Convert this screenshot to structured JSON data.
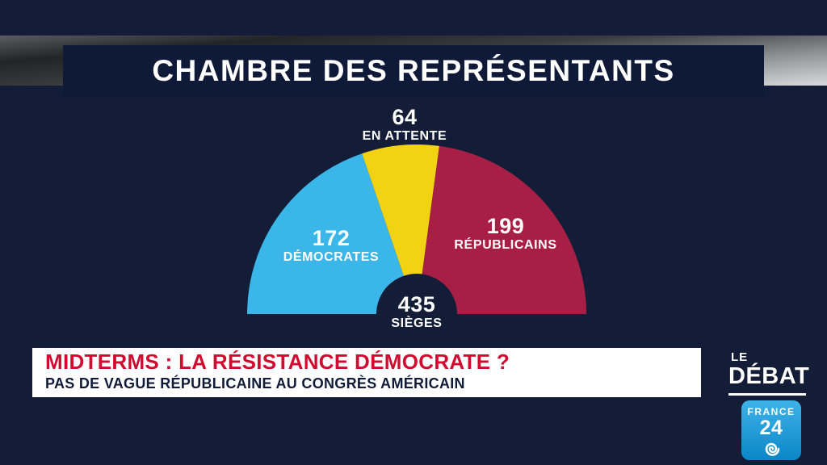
{
  "header": {
    "title": "CHAMBRE DES REPRÉSENTANTS"
  },
  "chart_data": {
    "type": "pie",
    "variant": "hemicycle-half-donut",
    "title": "CHAMBRE DES REPRÉSENTANTS",
    "total": 435,
    "total_label": "435",
    "total_sublabel": "SIÈGES",
    "segments": [
      {
        "name": "DÉMOCRATES",
        "value": 172,
        "color": "#3ab6e8"
      },
      {
        "name": "EN ATTENTE",
        "value": 64,
        "color": "#f2d313"
      },
      {
        "name": "RÉPUBLICAINS",
        "value": 199,
        "color": "#a81f45"
      }
    ],
    "legend_position": "on-chart",
    "background": "#141d37"
  },
  "lower_third": {
    "headline": "MIDTERMS : LA RÉSISTANCE DÉMOCRATE ?",
    "subheadline": "PAS DE VAGUE RÉPUBLICAINE AU CONGRÈS AMÉRICAIN"
  },
  "show_branding": {
    "line1": "LE",
    "line2": "DÉBAT"
  },
  "channel_logo": {
    "line1": "FRANCE",
    "line2": "24"
  },
  "colors": {
    "background": "#141d37",
    "headline_red": "#d10a2f",
    "logo_blue": "#1198d5",
    "democrats_blue": "#3ab6e8",
    "pending_yellow": "#f2d313",
    "republicans_crimson": "#a81f45"
  }
}
